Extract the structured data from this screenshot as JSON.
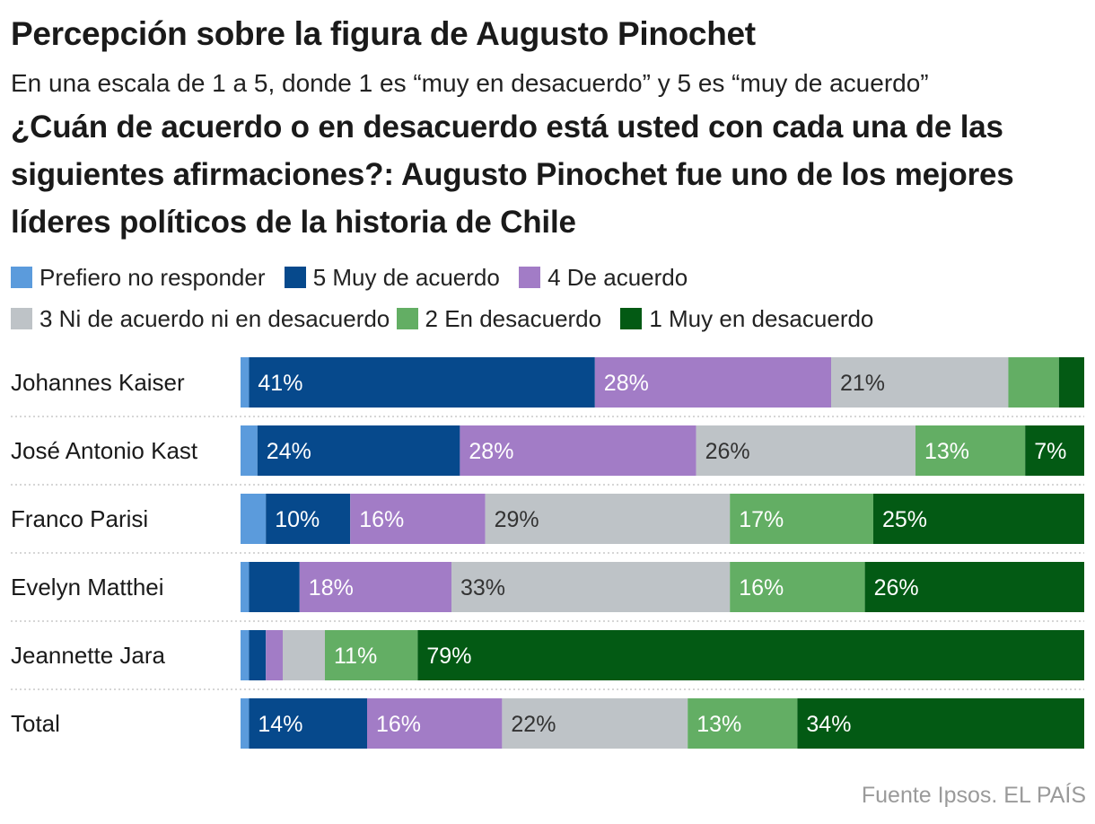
{
  "header": {
    "title": "Percepción sobre la figura de Augusto Pinochet",
    "subtitle": "En una escala de 1 a 5, donde 1 es “muy en desacuerdo” y 5 es “muy de acuerdo”",
    "question": "¿Cuán de acuerdo o en desacuerdo está usted con cada una de las siguientes afirmaciones?: Augusto Pinochet fue uno de los mejores líderes políticos de la historia de Chile"
  },
  "legend": [
    {
      "label": "Prefiero no responder",
      "color": "#5b9bdc"
    },
    {
      "label": "5 Muy de acuerdo",
      "color": "#06498c"
    },
    {
      "label": "4 De acuerdo",
      "color": "#a27cc6"
    },
    {
      "label": "3 Ni de acuerdo ni en desacuerdo",
      "color": "#bec3c7"
    },
    {
      "label": "2 En desacuerdo",
      "color": "#63ae64"
    },
    {
      "label": "1 Muy en desacuerdo",
      "color": "#035a14"
    }
  ],
  "chart_data": {
    "type": "bar",
    "orientation": "horizontal",
    "stacked": true,
    "unit": "%",
    "categories": [
      "Johannes Kaiser",
      "José Antonio Kast",
      "Franco Parisi",
      "Evelyn Matthei",
      "Jeannette Jara",
      "Total"
    ],
    "series": [
      {
        "name": "Prefiero no responder",
        "color": "#5b9bdc",
        "values": [
          1,
          2,
          3,
          1,
          1,
          1
        ],
        "labels": [
          "",
          "",
          "",
          "",
          "",
          ""
        ]
      },
      {
        "name": "5 Muy de acuerdo",
        "color": "#06498c",
        "values": [
          41,
          24,
          10,
          6,
          2,
          14
        ],
        "labels": [
          "41%",
          "24%",
          "10%",
          "",
          "",
          "14%"
        ]
      },
      {
        "name": "4 De acuerdo",
        "color": "#a27cc6",
        "values": [
          28,
          28,
          16,
          18,
          2,
          16
        ],
        "labels": [
          "28%",
          "28%",
          "16%",
          "18%",
          "",
          "16%"
        ]
      },
      {
        "name": "3 Ni de acuerdo ni en desacuerdo",
        "color": "#bec3c7",
        "values": [
          21,
          26,
          29,
          33,
          5,
          22
        ],
        "labels": [
          "21%",
          "26%",
          "29%",
          "33%",
          "",
          "22%"
        ]
      },
      {
        "name": "2 En desacuerdo",
        "color": "#63ae64",
        "values": [
          6,
          13,
          17,
          16,
          11,
          13
        ],
        "labels": [
          "",
          "13%",
          "17%",
          "16%",
          "11%",
          "13%"
        ]
      },
      {
        "name": "1 Muy en desacuerdo",
        "color": "#035a14",
        "values": [
          3,
          7,
          25,
          26,
          79,
          34
        ],
        "labels": [
          "",
          "7%",
          "25%",
          "26%",
          "79%",
          "34%"
        ]
      }
    ],
    "label_colors": {
      "light": "#ffffff",
      "dark": "#333333"
    },
    "xlim": [
      0,
      100
    ],
    "grid": false,
    "legend_position": "top"
  },
  "footer": {
    "source": "Fuente Ipsos. EL PAÍS"
  }
}
